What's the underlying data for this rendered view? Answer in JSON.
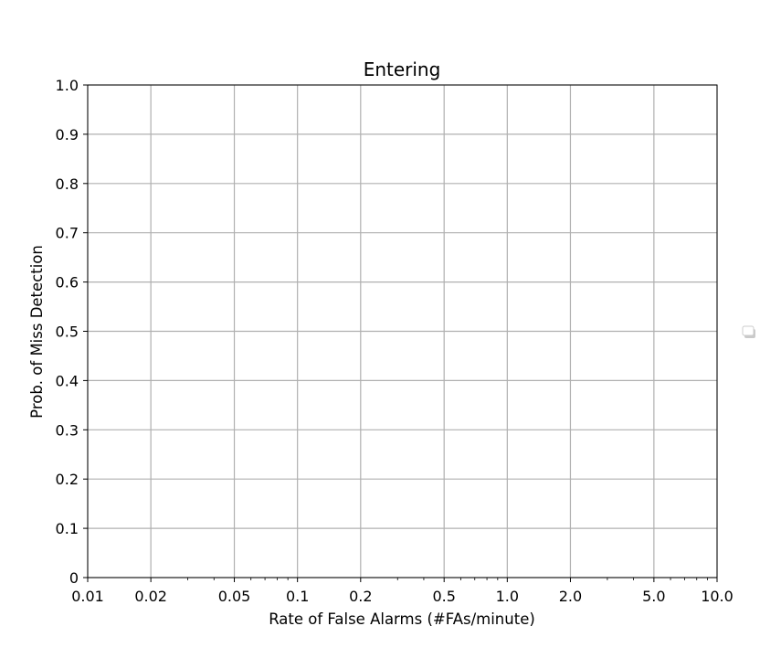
{
  "chart_data": {
    "type": "line",
    "title": "Entering",
    "xlabel": "Rate of False Alarms (#FAs/minute)",
    "ylabel": "Prob. of Miss Detection",
    "xscale": "log",
    "xlim": [
      0.01,
      10.0
    ],
    "ylim": [
      0,
      1.0
    ],
    "x_ticks": [
      0.01,
      0.02,
      0.05,
      0.1,
      0.2,
      0.5,
      1.0,
      2.0,
      5.0,
      10.0
    ],
    "x_tick_labels": [
      "0.01",
      "0.02",
      "0.05",
      "0.1",
      "0.2",
      "0.5",
      "1.0",
      "2.0",
      "5.0",
      "10.0"
    ],
    "y_ticks": [
      0,
      0.1,
      0.2,
      0.3,
      0.4,
      0.5,
      0.6,
      0.7,
      0.8,
      0.9,
      1.0
    ],
    "y_tick_labels": [
      "0",
      "0.1",
      "0.2",
      "0.3",
      "0.4",
      "0.5",
      "0.6",
      "0.7",
      "0.8",
      "0.9",
      "1.0"
    ],
    "grid": true,
    "legend": "center-right (outside), empty",
    "series": []
  },
  "colors": {
    "grid": "#b0b0b0",
    "axes": "#000000",
    "text": "#000000"
  }
}
